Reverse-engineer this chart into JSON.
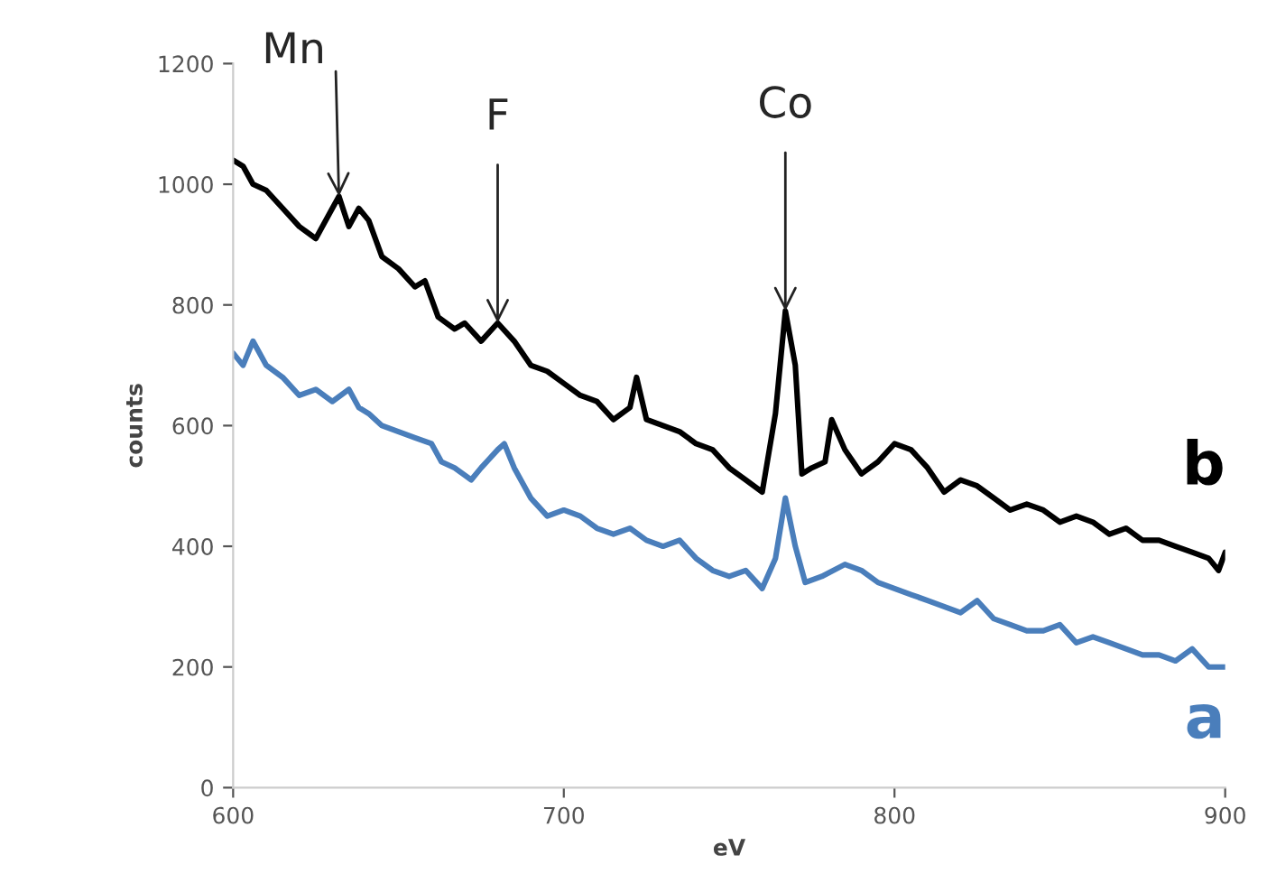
{
  "chart_data": {
    "type": "line",
    "xlabel": "eV",
    "ylabel": "counts",
    "xlim": [
      600,
      900
    ],
    "xticks": [
      600,
      700,
      800,
      900
    ],
    "ylim": [
      0,
      1200
    ],
    "yticks": [
      0,
      200,
      400,
      600,
      800,
      1000,
      1200
    ],
    "grid": false,
    "legend": false,
    "marker": "none",
    "line_style": "solid",
    "series": [
      {
        "name": "b",
        "color": "#000000",
        "x": [
          600,
          603,
          606,
          610,
          615,
          620,
          625,
          630,
          632,
          635,
          638,
          641,
          645,
          650,
          655,
          658,
          662,
          667,
          670,
          675,
          680,
          685,
          690,
          695,
          700,
          705,
          710,
          715,
          720,
          722,
          725,
          730,
          735,
          740,
          745,
          750,
          755,
          760,
          764,
          767,
          770,
          772,
          775,
          779,
          781,
          785,
          790,
          795,
          800,
          805,
          810,
          815,
          820,
          825,
          830,
          835,
          840,
          845,
          850,
          855,
          860,
          865,
          870,
          875,
          880,
          885,
          890,
          895,
          898,
          900
        ],
        "values": [
          1040,
          1030,
          1000,
          990,
          960,
          930,
          910,
          960,
          980,
          930,
          960,
          940,
          880,
          860,
          830,
          840,
          780,
          760,
          770,
          740,
          770,
          740,
          700,
          690,
          670,
          650,
          640,
          610,
          630,
          680,
          610,
          600,
          590,
          570,
          560,
          530,
          510,
          490,
          620,
          790,
          700,
          520,
          530,
          540,
          610,
          560,
          520,
          540,
          570,
          560,
          530,
          490,
          510,
          500,
          480,
          460,
          470,
          460,
          440,
          450,
          440,
          420,
          430,
          410,
          410,
          400,
          390,
          380,
          360,
          390
        ]
      },
      {
        "name": "a",
        "color": "#4a7ebb",
        "x": [
          600,
          603,
          606,
          610,
          615,
          620,
          625,
          630,
          635,
          638,
          641,
          645,
          650,
          655,
          660,
          663,
          667,
          672,
          675,
          680,
          682,
          685,
          690,
          695,
          700,
          705,
          710,
          715,
          720,
          725,
          730,
          735,
          740,
          745,
          750,
          755,
          760,
          764,
          767,
          770,
          773,
          778,
          785,
          790,
          795,
          800,
          805,
          810,
          815,
          820,
          825,
          830,
          835,
          840,
          845,
          850,
          855,
          860,
          865,
          870,
          875,
          880,
          885,
          890,
          895,
          900
        ],
        "values": [
          720,
          700,
          740,
          700,
          680,
          650,
          660,
          640,
          660,
          630,
          620,
          600,
          590,
          580,
          570,
          540,
          530,
          510,
          530,
          560,
          570,
          530,
          480,
          450,
          460,
          450,
          430,
          420,
          430,
          410,
          400,
          410,
          380,
          360,
          350,
          360,
          330,
          380,
          480,
          400,
          340,
          350,
          370,
          360,
          340,
          330,
          320,
          310,
          300,
          290,
          310,
          280,
          270,
          260,
          260,
          270,
          240,
          250,
          240,
          230,
          220,
          220,
          210,
          230,
          200,
          200
        ]
      }
    ],
    "annotations": [
      {
        "text": "Mn",
        "x": 632,
        "y": 980
      },
      {
        "text": "F",
        "x": 680,
        "y": 770
      },
      {
        "text": "Co",
        "x": 767,
        "y": 790
      }
    ]
  }
}
